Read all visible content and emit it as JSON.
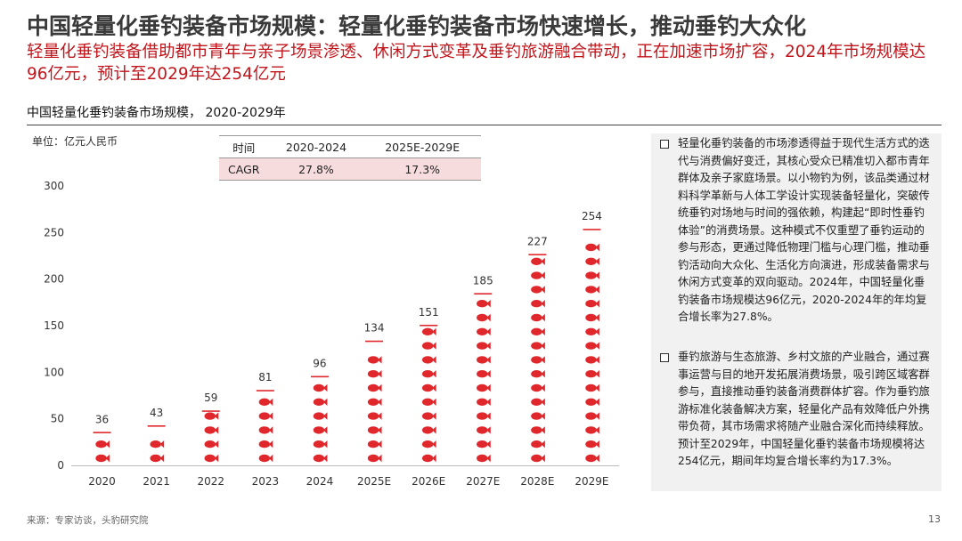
{
  "header": {
    "title": "中国轻量化垂钓装备市场规模：轻量化垂钓装备市场快速增长，推动垂钓大众化",
    "subtitle": "轻量化垂钓装备借助都市青年与亲子场景渗透、休闲方式变革及垂钓旅游融合带动，正在加速市场扩容，2024年市场规模达96亿元，预计至2029年达254亿元"
  },
  "chart_title": "中国轻量化垂钓装备市场规模， 2020-2029年",
  "unit_label": "单位：亿元人民币",
  "cagr_table": {
    "headers": [
      "时间",
      "2020-2024",
      "2025E-2029E"
    ],
    "row": [
      "CAGR",
      "27.8%",
      "17.3%"
    ]
  },
  "chart_data": {
    "type": "bar",
    "categories": [
      "2020",
      "2021",
      "2022",
      "2023",
      "2024",
      "2025E",
      "2026E",
      "2027E",
      "2028E",
      "2029E"
    ],
    "values": [
      36,
      43,
      59,
      81,
      96,
      134,
      151,
      185,
      227,
      254
    ],
    "ylim": [
      0,
      300
    ],
    "yticks": [
      0,
      50,
      100,
      150,
      200,
      250,
      300
    ],
    "xlabel": "",
    "ylabel": "",
    "grid": false,
    "bar_color": "#e0272c"
  },
  "side_panel": [
    "轻量化垂钓装备的市场渗透得益于现代生活方式的迭代与消费偏好变迁，其核心受众已精准切入都市青年群体及亲子家庭场景。以小物钓为例，该品类通过材料科学革新与人体工学设计实现装备轻量化，突破传统垂钓对场地与时间的强依赖，构建起“即时性垂钓体验”的消费场景。这种模式不仅重塑了垂钓运动的参与形态，更通过降低物理门槛与心理门槛，推动垂钓活动向大众化、生活化方向演进，形成装备需求与休闲方式变革的双向驱动。2024年，中国轻量化垂钓装备市场规模达96亿元，2020-2024年的年均复合增长率为27.8%。",
    "垂钓旅游与生态旅游、乡村文旅的产业融合，通过赛事运营与目的地开发拓展消费场景，吸引跨区域客群参与，直接推动垂钓装备消费群体扩容。作为垂钓旅游标准化装备解决方案，轻量化产品有效降低户外携带负荷，其市场需求将随产业融合深化而持续释放。预计至2029年，中国轻量化垂钓装备市场规模将达254亿元，期间年均复合增长率约为17.3%。"
  ],
  "footer": {
    "source": "来源：专家访谈，头豹研究院",
    "page_number": "13"
  }
}
